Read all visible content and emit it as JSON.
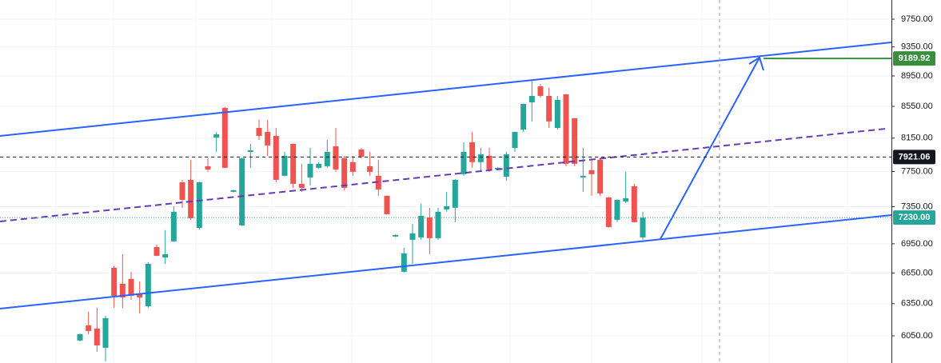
{
  "chart_data": {
    "type": "candlestick",
    "log_scale": true,
    "grid": true,
    "up_color": "#26a69a",
    "down_color": "#ef5350",
    "ylim": [
      5807,
      10036
    ],
    "yticks": [
      {
        "value": 9750,
        "label": "9750.00"
      },
      {
        "value": 9350,
        "label": "9350.00"
      },
      {
        "value": 8950,
        "label": "8950.00"
      },
      {
        "value": 8550,
        "label": "8550.00"
      },
      {
        "value": 8150,
        "label": "8150.00"
      },
      {
        "value": 7750,
        "label": "7750.00"
      },
      {
        "value": 7350,
        "label": "7350.00"
      },
      {
        "value": 6950,
        "label": "6950.00"
      },
      {
        "value": 6650,
        "label": "6650.00"
      },
      {
        "value": 6350,
        "label": "6350.00"
      },
      {
        "value": 6050,
        "label": "6050.00"
      }
    ],
    "open": [
      6007,
      6146,
      6117,
      5942,
      6703,
      6544,
      6591,
      6442,
      6326,
      6916,
      6808,
      6975,
      7625,
      7653,
      7119,
      7812,
      8157,
      8530,
      7516,
      7145,
      7982,
      8276,
      8226,
      8177,
      7700,
      8079,
      7607,
      7681,
      7793,
      7812,
      8050,
      7907,
      7860,
      8011,
      7812,
      7700,
      7471,
      7026,
      6663,
      6992,
      7017,
      7232,
      7009,
      7320,
      7338,
      7719,
      8099,
      7860,
      7935,
      7774,
      7690,
      8030,
      8256,
      8601,
      8812,
      8685,
      8276,
      8706,
      8397,
      7681,
      7765,
      7888,
      7453,
      7206,
      7408,
      7579,
      7017
    ],
    "high": [
      6070,
      6273,
      6311,
      6235,
      6719,
      6842,
      6663,
      6567,
      6760,
      6941,
      7094,
      7355,
      7653,
      7888,
      7630,
      7907,
      8226,
      8540,
      7540,
      7910,
      8079,
      8377,
      8377,
      8276,
      7982,
      8085,
      7840,
      8030,
      7860,
      8128,
      8276,
      7935,
      7935,
      8030,
      7982,
      7888,
      7475,
      7050,
      6908,
      7162,
      7382,
      7338,
      7338,
      7516,
      7660,
      8099,
      8226,
      8030,
      8030,
      7800,
      7982,
      8230,
      8585,
      8897,
      8844,
      8791,
      8685,
      8710,
      8400,
      8030,
      7907,
      7907,
      7460,
      7430,
      7746,
      7607,
      7293
    ],
    "low": [
      6000,
      6065,
      5906,
      5821,
      6311,
      6311,
      6387,
      6258,
      6311,
      6820,
      6743,
      6970,
      7338,
      7206,
      7102,
      7746,
      7982,
      7790,
      7510,
      7140,
      7793,
      8128,
      7935,
      7625,
      7695,
      7561,
      7516,
      7588,
      7780,
      7793,
      7746,
      7534,
      7700,
      7907,
      7700,
      7471,
      7262,
      7020,
      6655,
      6743,
      6992,
      6842,
      6992,
      7293,
      7180,
      7700,
      7793,
      7746,
      7746,
      7765,
      7644,
      7982,
      8226,
      8357,
      8664,
      8276,
      8256,
      7812,
      7812,
      7516,
      7471,
      7471,
      7120,
      7180,
      7390,
      7180,
      6992
    ],
    "close": [
      6065,
      6094,
      5963,
      6213,
      6426,
      6410,
      6426,
      6410,
      6743,
      6825,
      6842,
      7293,
      7426,
      7223,
      7625,
      7774,
      8197,
      7793,
      7534,
      7907,
      8002,
      8177,
      8060,
      7653,
      7935,
      7607,
      7561,
      7840,
      7840,
      7982,
      7774,
      7561,
      7746,
      7925,
      7746,
      7543,
      7267,
      7043,
      6850,
      7060,
      7249,
      7009,
      7293,
      7355,
      7653,
      7982,
      7860,
      7954,
      7774,
      7793,
      7954,
      8226,
      8581,
      8685,
      8685,
      8357,
      8633,
      7840,
      7840,
      7700,
      7719,
      7498,
      7128,
      7426,
      7444,
      7180,
      7230
    ],
    "price_lines": [
      {
        "value": 9189.92,
        "color": "#388e3c",
        "style": "solid"
      },
      {
        "value": 7921.06,
        "color": "#131722",
        "style": "dashed"
      },
      {
        "value": 7230,
        "label": "7230.00",
        "color": "#26a69a",
        "style": "dotted"
      }
    ]
  }
}
